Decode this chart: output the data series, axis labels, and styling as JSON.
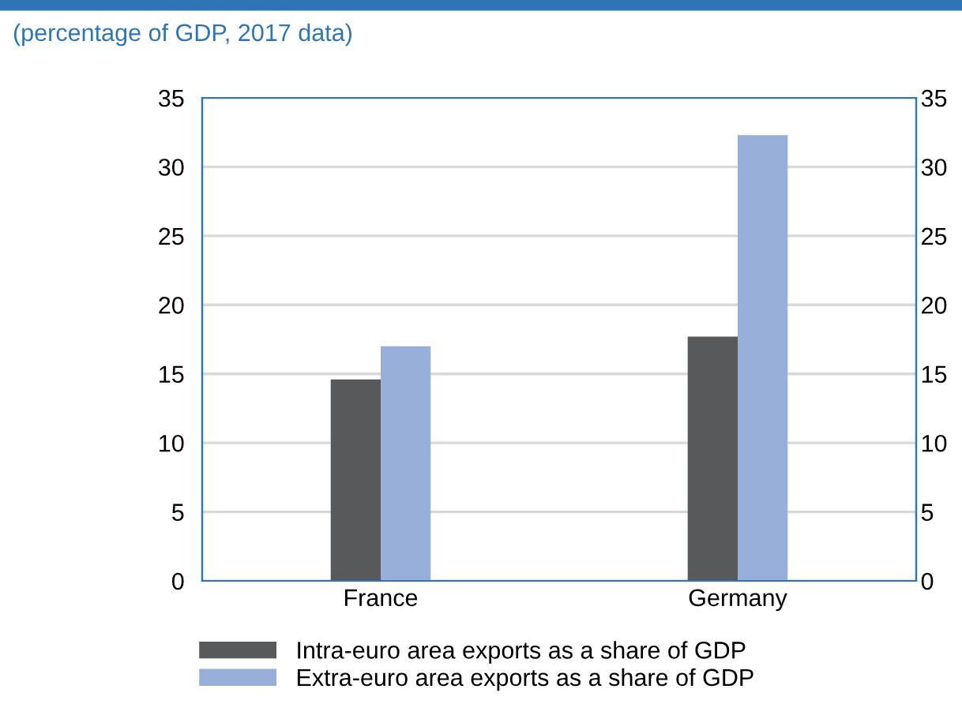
{
  "chart_data": {
    "type": "bar",
    "subtitle": "(percentage of GDP, 2017 data)",
    "categories": [
      "France",
      "Germany"
    ],
    "series": [
      {
        "name": "Intra-euro area exports as a share of GDP",
        "color": "#58595b",
        "values": [
          14.6,
          17.7
        ]
      },
      {
        "name": "Extra-euro area exports as a share of GDP",
        "color": "#97afd9",
        "values": [
          17.0,
          32.3
        ]
      }
    ],
    "ylim": [
      0,
      35
    ],
    "yticks": [
      0,
      5,
      10,
      15,
      20,
      25,
      30,
      35
    ],
    "y2lim": [
      0,
      35
    ],
    "y2ticks": [
      0,
      5,
      10,
      15,
      20,
      25,
      30,
      35
    ],
    "grid": "y",
    "legend": "bottom"
  }
}
